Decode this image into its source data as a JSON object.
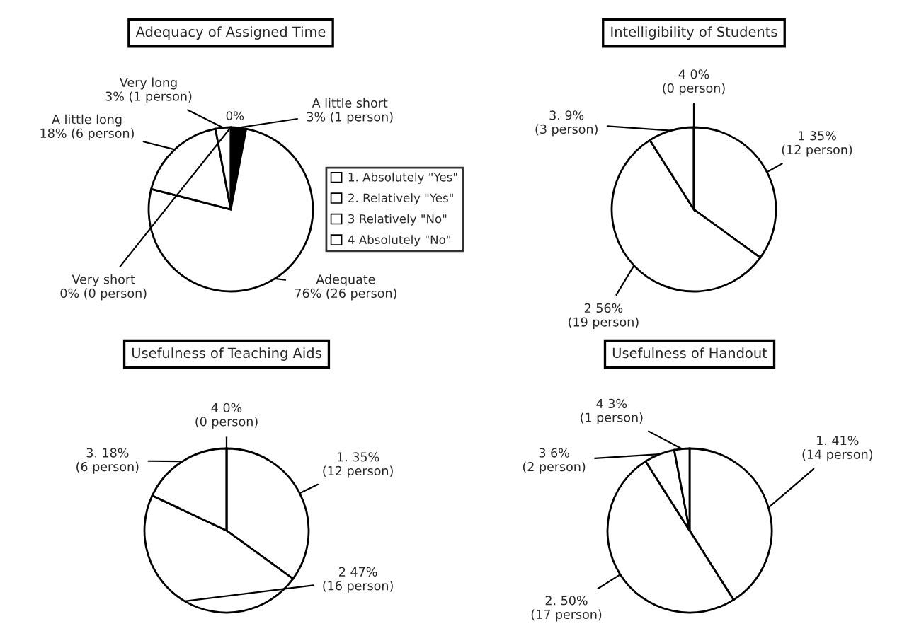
{
  "chart_data": [
    {
      "type": "pie",
      "title": "Adequacy of Assigned Time",
      "categories": [
        "A little short",
        "Adequate",
        "A little long",
        "Very long",
        "Very short"
      ],
      "values": [
        3,
        76,
        18,
        3,
        0
      ],
      "colors": [
        "#000000",
        "#ffffff",
        "#ffffff",
        "#ffffff",
        "#ffffff"
      ],
      "value_labels": [
        "3% (1 person)",
        "76% (26 person)",
        "18% (6 person)",
        "3% (1 person)",
        "0% (0 person)"
      ],
      "annotations": [
        "0%"
      ]
    },
    {
      "type": "pie",
      "title": "Intelligibility of Students",
      "categories": [
        "1. Absolutely \"Yes\"",
        "2. Relatively \"Yes\"",
        "3 Relatively \"No\"",
        "4 Absolutely \"No\""
      ],
      "values": [
        35,
        56,
        9,
        0
      ],
      "colors": [
        "#ffffff",
        "#ffffff",
        "#ffffff",
        "#ffffff"
      ],
      "value_labels": [
        "1 35%\n(12 person)",
        "2 56%\n(19 person)",
        "3. 9%\n(3 person)",
        "4 0%\n(0 person)"
      ],
      "legend": "left"
    },
    {
      "type": "pie",
      "title": "Usefulness of Teaching Aids",
      "categories": [
        null,
        null,
        null,
        null
      ],
      "values": [
        35,
        47,
        18,
        0
      ],
      "colors": [
        "#ffffff",
        "#ffffff",
        "#ffffff",
        "#ffffff"
      ],
      "value_labels": [
        "1. 35%\n(12 person)",
        "2 47%\n(16 person)",
        "3. 18%\n(6 person)",
        "4 0%\n(0 person)"
      ],
      "legend": false
    },
    {
      "type": "pie",
      "title": "Usefulness of Handout",
      "categories": [
        null,
        null,
        null,
        null
      ],
      "values": [
        41,
        50,
        6,
        3
      ],
      "colors": [
        "#ffffff",
        "#ffffff",
        "#ffffff",
        "#ffffff"
      ],
      "value_labels": [
        "1. 41%\n(14 person)",
        "2. 50%\n(17 person)",
        "3 6%\n(2 person)",
        "4 3%\n(1 person)"
      ],
      "legend": false
    }
  ]
}
